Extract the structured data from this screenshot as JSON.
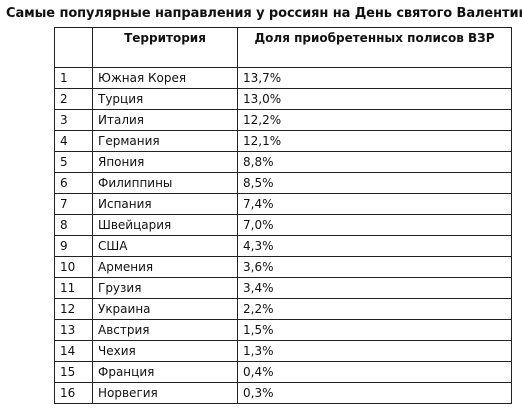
{
  "title": "Самые популярные направления у россиян на День святого Валентина",
  "table": {
    "headers": [
      "",
      "Территория",
      "Доля приобретенных полисов ВЗР"
    ],
    "rows": [
      {
        "num": "1",
        "territory": "Южная Корея",
        "share": "13,7%"
      },
      {
        "num": "2",
        "territory": "Турция",
        "share": "13,0%"
      },
      {
        "num": "3",
        "territory": "Италия",
        "share": "12,2%"
      },
      {
        "num": "4",
        "territory": "Германия",
        "share": "12,1%"
      },
      {
        "num": "5",
        "territory": "Япония",
        "share": "8,8%"
      },
      {
        "num": "6",
        "territory": "Филиппины",
        "share": "8,5%"
      },
      {
        "num": "7",
        "territory": "Испания",
        "share": "7,4%"
      },
      {
        "num": "8",
        "territory": "Швейцария",
        "share": "7,0%"
      },
      {
        "num": "9",
        "territory": "США",
        "share": "4,3%"
      },
      {
        "num": "10",
        "territory": "Армения",
        "share": "3,6%"
      },
      {
        "num": "11",
        "territory": "Грузия",
        "share": "3,4%"
      },
      {
        "num": "12",
        "territory": "Украина",
        "share": "2,2%"
      },
      {
        "num": "13",
        "territory": "Австрия",
        "share": "1,5%"
      },
      {
        "num": "14",
        "territory": "Чехия",
        "share": "1,3%"
      },
      {
        "num": "15",
        "territory": "Франция",
        "share": "0,4%"
      },
      {
        "num": "16",
        "territory": "Норвегия",
        "share": "0,3%"
      }
    ]
  }
}
